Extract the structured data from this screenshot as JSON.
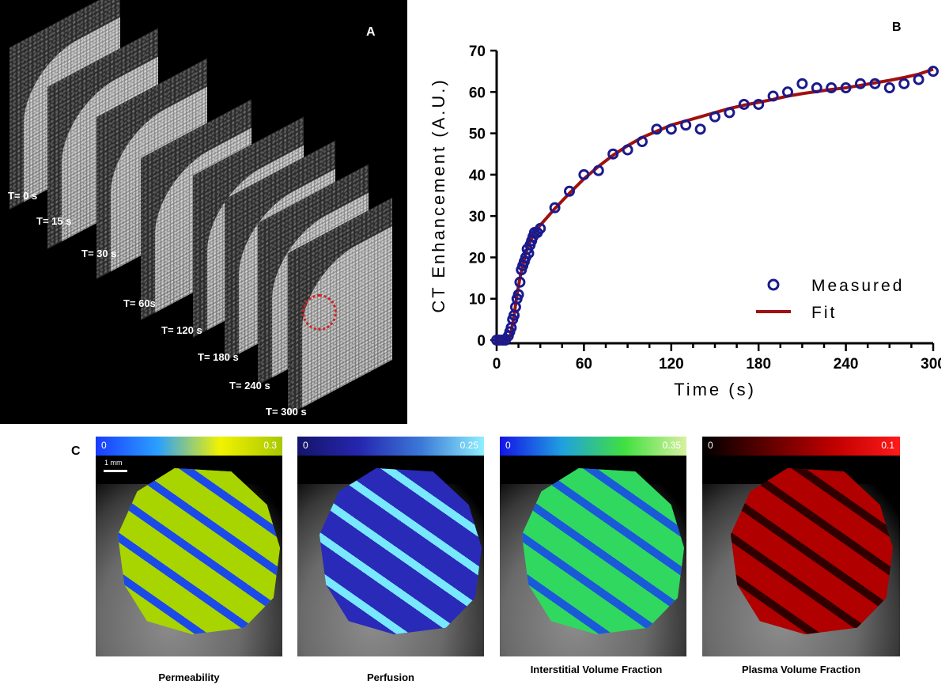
{
  "panel_a": {
    "letter": "A",
    "time_labels": [
      "T= 0 s",
      "T= 15 s",
      "T= 30 s",
      "T= 60s",
      "T= 120 s",
      "T= 180 s",
      "T= 240 s",
      "T= 300 s"
    ]
  },
  "panel_b": {
    "letter": "B"
  },
  "panel_c": {
    "letter": "C",
    "scale_label": "1 mm",
    "maps": [
      {
        "caption": "Permeability",
        "min": "0",
        "max": "0.3",
        "colors": [
          "#1a3cff",
          "#2aa0ff",
          "#f2f200",
          "#a8c800"
        ],
        "tumor": "#a8d400",
        "tumor2": "#1c4ae8"
      },
      {
        "caption": "Perfusion",
        "min": "0",
        "max": "0.25",
        "colors": [
          "#14146a",
          "#2626b0",
          "#3c7ad8",
          "#8ef0ff"
        ],
        "tumor": "#2a2ab8",
        "tumor2": "#78e8ff"
      },
      {
        "caption": "Interstitial Volume Fraction",
        "min": "0",
        "max": "0.35",
        "colors": [
          "#1414e6",
          "#20a0e0",
          "#40e040",
          "#d8f0a0"
        ],
        "tumor": "#30d860",
        "tumor2": "#1a5ad8"
      },
      {
        "caption": "Plasma Volume Fraction",
        "min": "0",
        "max": "0.1",
        "colors": [
          "#000000",
          "#600000",
          "#c00000",
          "#ff1a1a"
        ],
        "tumor": "#b00000",
        "tumor2": "#300000"
      }
    ]
  },
  "chart_data": {
    "type": "scatter",
    "title": "",
    "xlabel": "Time (s)",
    "ylabel": "CT Enhancement (A.U.)",
    "xlim": [
      0,
      300
    ],
    "ylim": [
      0,
      70
    ],
    "xticks": [
      0,
      60,
      120,
      180,
      240,
      300
    ],
    "yticks": [
      0,
      10,
      20,
      30,
      40,
      50,
      60,
      70
    ],
    "legend_position": "lower-right",
    "colors": {
      "measured": "#1a1a8c",
      "fit": "#a01010"
    },
    "series": [
      {
        "name": "Measured",
        "kind": "points",
        "x": [
          0,
          2,
          4,
          6,
          8,
          9,
          10,
          11,
          12,
          13,
          14,
          15,
          16,
          17,
          18,
          19,
          20,
          21,
          22,
          23,
          24,
          25,
          26,
          28,
          30,
          40,
          50,
          60,
          70,
          80,
          90,
          100,
          110,
          120,
          130,
          140,
          150,
          160,
          170,
          180,
          190,
          200,
          210,
          220,
          230,
          240,
          250,
          260,
          270,
          280,
          290,
          300
        ],
        "y": [
          0,
          0,
          0,
          0,
          1,
          2,
          3,
          5,
          6,
          8,
          10,
          11,
          14,
          17,
          18,
          19,
          20,
          22,
          21,
          23,
          24,
          25,
          26,
          26,
          27,
          32,
          36,
          40,
          41,
          45,
          46,
          48,
          51,
          51,
          52,
          51,
          54,
          55,
          57,
          57,
          59,
          60,
          62,
          61,
          61,
          61,
          62,
          62,
          61,
          62,
          63,
          65
        ]
      },
      {
        "name": "Fit",
        "kind": "line",
        "x": [
          0,
          8,
          10,
          12,
          14,
          16,
          18,
          20,
          22,
          24,
          26,
          28,
          30,
          35,
          40,
          50,
          60,
          70,
          80,
          90,
          100,
          110,
          120,
          130,
          140,
          150,
          160,
          170,
          180,
          190,
          200,
          210,
          220,
          230,
          240,
          250,
          260,
          270,
          280,
          290,
          300
        ],
        "y": [
          0,
          0,
          2,
          6,
          11,
          15,
          18,
          21,
          23,
          24.5,
          26,
          27,
          27.8,
          29.8,
          31.8,
          35.5,
          39,
          42,
          44.7,
          47,
          49,
          50.5,
          52,
          53,
          54,
          55,
          56,
          56.8,
          57.5,
          58.2,
          59,
          59.6,
          60.1,
          60.6,
          61,
          61.6,
          62.2,
          62.8,
          63.5,
          64.3,
          65.5
        ]
      }
    ]
  }
}
